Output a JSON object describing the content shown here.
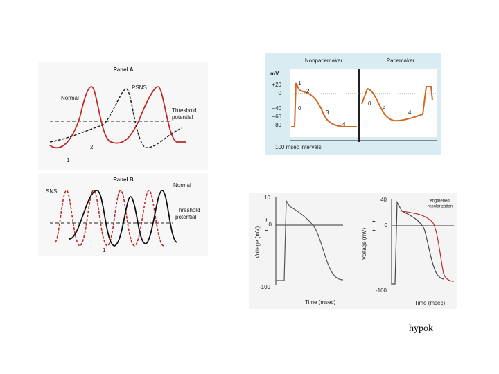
{
  "panel_a": {
    "title": "Panel A",
    "psns": "PSNS",
    "normal": "Normal",
    "threshold": [
      "Threshold",
      "potential"
    ],
    "markers": [
      "1",
      "2"
    ]
  },
  "panel_b": {
    "title": "Panel B",
    "sns": "SNS",
    "normal": "Normal",
    "threshold": [
      "Threshold",
      "potential"
    ],
    "marker": "1"
  },
  "action_potential": {
    "headers": [
      "Nonpacemaker",
      "Pacemaker"
    ],
    "unit": "mV",
    "ticks": [
      "+20",
      "0",
      "−40",
      "−60",
      "−80"
    ],
    "nonpacemaker_phases": [
      "1",
      "2",
      "0",
      "3",
      "4"
    ],
    "pacemaker_phases": [
      "0",
      "3",
      "4"
    ],
    "footer": "100 msec intervals"
  },
  "voltage_plots": [
    {
      "ticks": [
        "10",
        "0",
        "-100"
      ],
      "signs": [
        "+",
        "−"
      ],
      "y_label": "Voltage (mV)",
      "x_label": "Time (msec)"
    },
    {
      "ticks": [
        "40",
        "0",
        "-100"
      ],
      "signs": [
        "+",
        "−"
      ],
      "y_label": "Voltage (mV)",
      "x_label": "Time (msec)",
      "annotation": [
        "Lengthened",
        "repolarization"
      ]
    }
  ],
  "caption": "hypok"
}
